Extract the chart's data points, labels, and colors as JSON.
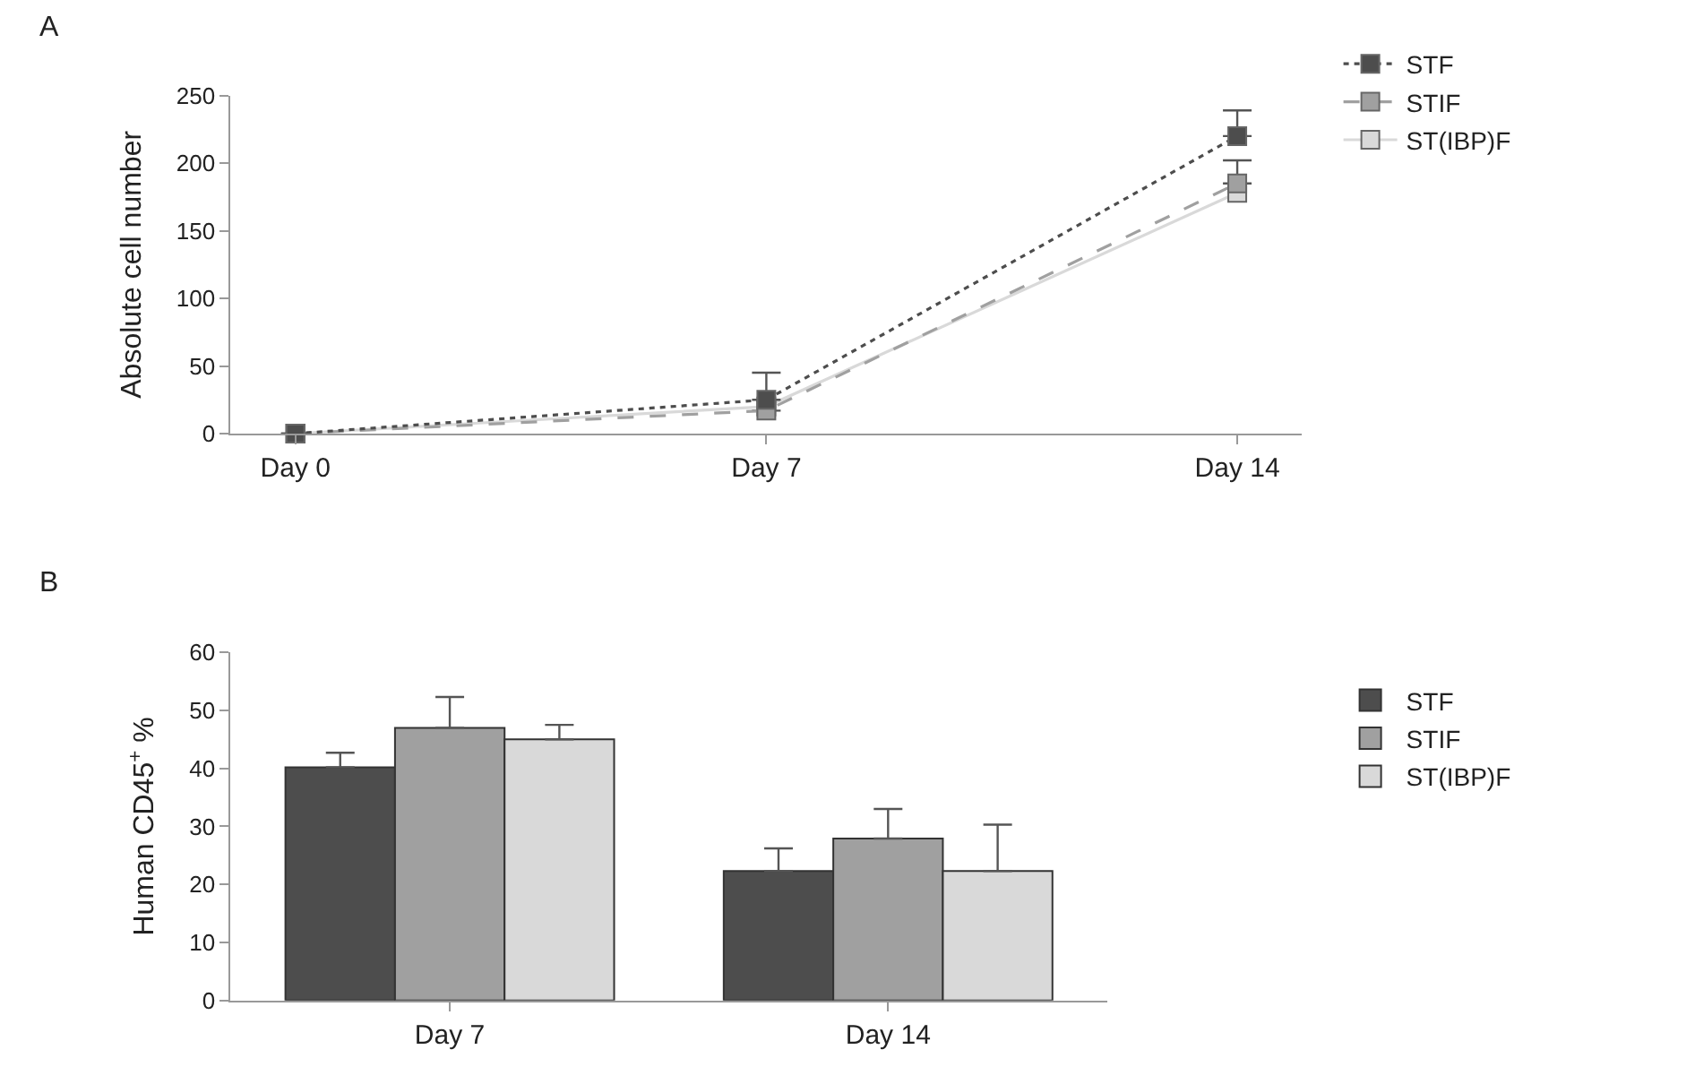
{
  "chart_data": [
    {
      "type": "line",
      "title": "A",
      "ylabel": "Absolute cell number",
      "categories": [
        "Day 0",
        "Day 7",
        "Day 14"
      ],
      "ylim": [
        0,
        250
      ],
      "yticks": [
        0,
        50,
        100,
        150,
        200,
        250
      ],
      "legend": "top right",
      "marker": "square",
      "series": [
        {
          "name": "STF",
          "color": "#4d4d4d",
          "line_style": "dotted",
          "values": [
            0,
            25,
            220
          ],
          "errors": [
            null,
            [
              25,
              45
            ],
            [
              220,
              239
            ]
          ]
        },
        {
          "name": "STIF",
          "color": "#a0a0a0",
          "line_style": "dashed",
          "values": [
            0,
            17,
            185
          ],
          "errors": [
            null,
            null,
            [
              185,
              202
            ]
          ]
        },
        {
          "name": "ST(IBP)F",
          "color": "#d9d9d9",
          "line_style": "solid",
          "values": [
            0,
            20,
            178
          ]
        }
      ]
    },
    {
      "type": "bar",
      "title": "B",
      "ylabel": "Human CD45$^{+}$ %",
      "categories": [
        "Day 7",
        "Day 14"
      ],
      "ylim": [
        0,
        60
      ],
      "yticks": [
        0,
        10,
        20,
        30,
        40,
        50,
        60
      ],
      "legend": "right",
      "series": [
        {
          "name": "STF",
          "color": "#4d4d4d",
          "values": [
            40.2,
            22.3
          ],
          "errors": [
            [
              40.2,
              42.7
            ],
            [
              22.3,
              26.2
            ]
          ]
        },
        {
          "name": "STIF",
          "color": "#a0a0a0",
          "values": [
            47,
            27.9
          ],
          "errors": [
            [
              47,
              52.3
            ],
            [
              27.9,
              33
            ]
          ]
        },
        {
          "name": "ST(IBP)F",
          "color": "#d9d9d9",
          "values": [
            45,
            22.3
          ],
          "errors": [
            [
              45,
              47.5
            ],
            [
              22.3,
              30.3
            ]
          ]
        }
      ]
    }
  ]
}
